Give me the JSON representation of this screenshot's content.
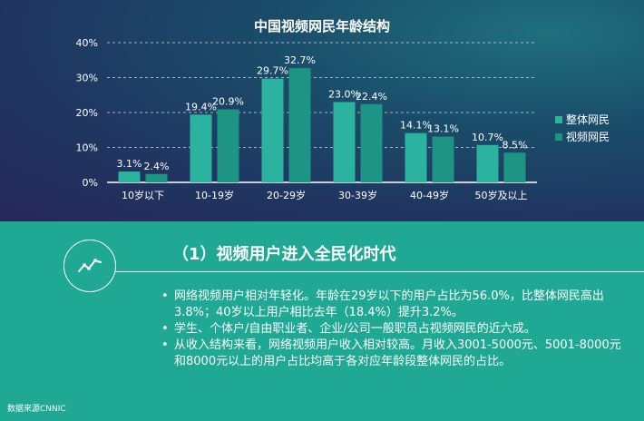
{
  "chart_data": {
    "type": "bar",
    "title": "中国视频网民年龄结构",
    "categories": [
      "10岁以下",
      "10-19岁",
      "20-29岁",
      "30-39岁",
      "40-49岁",
      "50岁及以上"
    ],
    "series": [
      {
        "name": "整体网民",
        "values": [
          3.1,
          19.4,
          29.7,
          23.0,
          14.1,
          10.7
        ],
        "labels": [
          "3.1%",
          "19.4%",
          "29.7%",
          "23.0%",
          "14.1%",
          "10.7%"
        ],
        "color": "#2bb39f"
      },
      {
        "name": "视频网民",
        "values": [
          2.4,
          20.9,
          32.7,
          22.4,
          13.1,
          8.5
        ],
        "labels": [
          "2.4%",
          "20.9%",
          "32.7%",
          "22.4%",
          "13.1%",
          "8.5%"
        ],
        "color": "#1e9484"
      }
    ],
    "ylim": [
      0,
      40
    ],
    "yticks": [
      0,
      10,
      20,
      30,
      40
    ],
    "ytick_labels": [
      "0%",
      "10%",
      "20%",
      "30%",
      "40%"
    ],
    "grid": true,
    "legend": "right"
  },
  "section": {
    "title": "（1）视频用户进入全民化时代",
    "icon": "trend-chart-icon",
    "bullet_glyph": "•",
    "bullets": [
      "网络视频用户相对年轻化。年龄在29岁以下的用户占比为56.0%，比整体网民高出3.8%；40岁以上用户相比去年（18.4%）提升3.2%。",
      "学生、个体户/自由职业者、企业/公司一般职员占视频网民的近六成。",
      "从收入结构来看，网络视频用户收入相对较高。月收入3001-5000元、5001-8000元和8000元以上的用户占比均高于各对应年龄段整体网民的占比。"
    ]
  },
  "source": "数据来源CNNIC",
  "colors": {
    "bottom_bg": "#1fa893",
    "text": "#ffffff",
    "grid": "#c8d0e0"
  }
}
